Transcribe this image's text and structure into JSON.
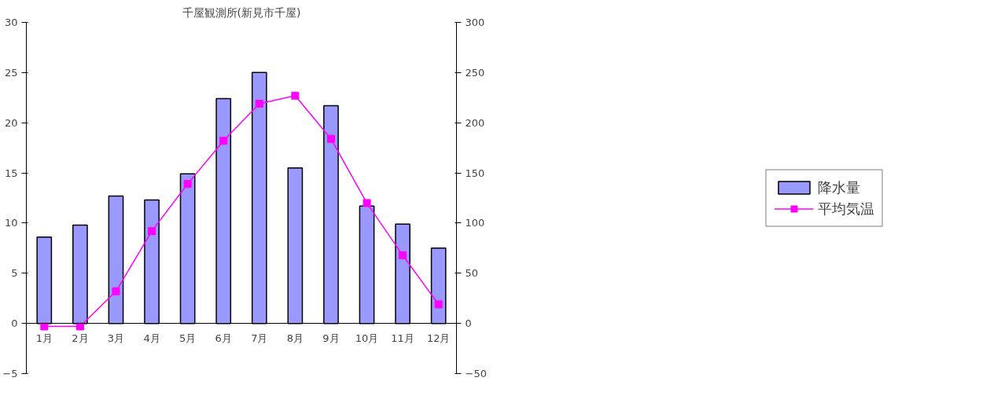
{
  "chart_data": {
    "type": "bar",
    "title": "千屋観測所(新見市千屋)",
    "categories": [
      "1月",
      "2月",
      "3月",
      "4月",
      "5月",
      "6月",
      "7月",
      "8月",
      "9月",
      "10月",
      "11月",
      "12月"
    ],
    "series": [
      {
        "name": "降水量",
        "axis": "y2",
        "color": "#9999ff",
        "values": [
          86,
          98,
          127,
          123,
          149,
          224,
          250,
          155,
          217,
          117,
          99,
          75
        ]
      },
      {
        "name": "平均気温",
        "type": "line",
        "axis": "y",
        "color": "#ff00ff",
        "marker": "square",
        "values": [
          -0.3,
          -0.3,
          3.2,
          9.2,
          13.9,
          18.2,
          21.9,
          22.7,
          18.4,
          12.0,
          6.8,
          1.9
        ]
      }
    ],
    "ylim": [
      -5,
      30
    ],
    "yticks": [
      -5,
      0,
      5,
      10,
      15,
      20,
      25,
      30
    ],
    "y2lim": [
      -50,
      300
    ],
    "y2ticks": [
      -50,
      0,
      50,
      100,
      150,
      200,
      250,
      300
    ],
    "legend": "right",
    "grid": false
  }
}
